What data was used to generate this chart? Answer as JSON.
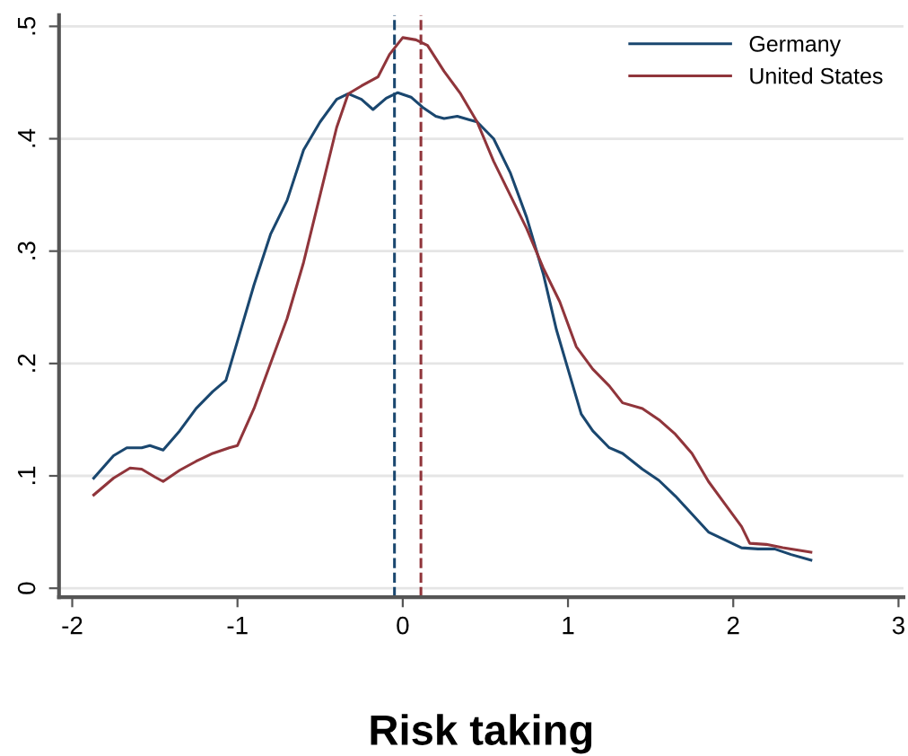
{
  "chart_data": {
    "type": "line",
    "xlabel": "Risk taking",
    "xlim": [
      -2.08,
      3.03
    ],
    "ylim": [
      -0.008,
      0.51
    ],
    "xticks": [
      -2,
      -1,
      0,
      1,
      2,
      3
    ],
    "yticks": [
      0,
      {
        "value": 0.1,
        "label": ".1"
      },
      {
        "value": 0.2,
        "label": ".2"
      },
      {
        "value": 0.3,
        "label": ".3"
      },
      {
        "value": 0.4,
        "label": ".4"
      },
      {
        "value": 0.5,
        "label": ".5"
      }
    ],
    "grid": "y",
    "legend": "top right",
    "line_style": "solid",
    "marker": "none",
    "series": [
      {
        "name": "Germany",
        "color": "#1a476f",
        "x": [
          -1.87,
          -1.75,
          -1.67,
          -1.58,
          -1.53,
          -1.45,
          -1.35,
          -1.25,
          -1.15,
          -1.07,
          -1.0,
          -0.9,
          -0.8,
          -0.7,
          -0.6,
          -0.5,
          -0.4,
          -0.33,
          -0.25,
          -0.18,
          -0.1,
          -0.03,
          0.05,
          0.12,
          0.2,
          0.25,
          0.33,
          0.4,
          0.45,
          0.55,
          0.65,
          0.75,
          0.85,
          0.93,
          1.0,
          1.08,
          1.15,
          1.25,
          1.33,
          1.45,
          1.55,
          1.65,
          1.75,
          1.85,
          1.95,
          2.05,
          2.15,
          2.25,
          2.35,
          2.47
        ],
        "values": [
          0.098,
          0.118,
          0.125,
          0.125,
          0.127,
          0.123,
          0.14,
          0.16,
          0.175,
          0.185,
          0.22,
          0.27,
          0.315,
          0.345,
          0.39,
          0.415,
          0.435,
          0.44,
          0.435,
          0.426,
          0.436,
          0.441,
          0.437,
          0.428,
          0.42,
          0.418,
          0.42,
          0.417,
          0.415,
          0.4,
          0.37,
          0.33,
          0.28,
          0.23,
          0.195,
          0.155,
          0.14,
          0.125,
          0.12,
          0.106,
          0.096,
          0.082,
          0.066,
          0.05,
          0.043,
          0.036,
          0.035,
          0.035,
          0.03,
          0.025
        ]
      },
      {
        "name": "United States",
        "color": "#90353b",
        "x": [
          -1.87,
          -1.75,
          -1.65,
          -1.58,
          -1.5,
          -1.45,
          -1.35,
          -1.25,
          -1.15,
          -1.05,
          -1.0,
          -0.9,
          -0.8,
          -0.7,
          -0.6,
          -0.5,
          -0.4,
          -0.33,
          -0.25,
          -0.15,
          -0.08,
          0.0,
          0.08,
          0.15,
          0.25,
          0.35,
          0.45,
          0.55,
          0.65,
          0.75,
          0.85,
          0.95,
          1.05,
          1.15,
          1.25,
          1.33,
          1.45,
          1.55,
          1.65,
          1.75,
          1.85,
          1.95,
          2.05,
          2.1,
          2.2,
          2.3,
          2.47
        ],
        "values": [
          0.083,
          0.098,
          0.107,
          0.106,
          0.099,
          0.095,
          0.105,
          0.113,
          0.12,
          0.125,
          0.127,
          0.16,
          0.2,
          0.24,
          0.29,
          0.35,
          0.41,
          0.44,
          0.447,
          0.455,
          0.475,
          0.49,
          0.488,
          0.483,
          0.46,
          0.44,
          0.415,
          0.38,
          0.35,
          0.32,
          0.285,
          0.255,
          0.215,
          0.195,
          0.18,
          0.165,
          0.16,
          0.15,
          0.137,
          0.12,
          0.095,
          0.075,
          0.055,
          0.04,
          0.039,
          0.036,
          0.032
        ]
      }
    ],
    "ref_lines": [
      {
        "axis": "x",
        "value": -0.05,
        "color": "#1a476f",
        "line_style": "dashed"
      },
      {
        "axis": "x",
        "value": 0.11,
        "color": "#90353b",
        "line_style": "dashed"
      }
    ]
  }
}
